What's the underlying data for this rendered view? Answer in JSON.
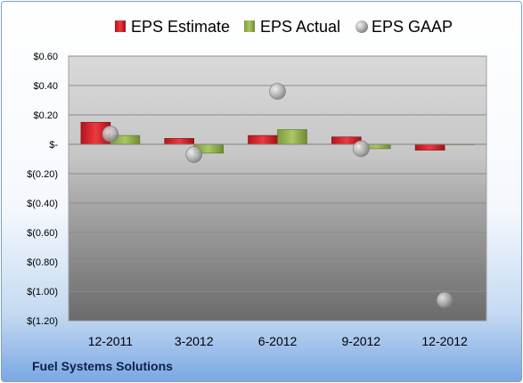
{
  "company": "Fuel Systems Solutions",
  "colors": {
    "estimate": "#e0262e",
    "actual": "#9bbb59",
    "gaap": "#a6a6a6"
  },
  "chart_data": {
    "type": "bar",
    "title": "",
    "xlabel": "",
    "ylabel": "",
    "categories": [
      "12-2011",
      "3-2012",
      "6-2012",
      "9-2012",
      "12-2012"
    ],
    "series": [
      {
        "name": "EPS Estimate",
        "kind": "bar",
        "values": [
          0.15,
          0.04,
          0.06,
          0.05,
          -0.04
        ]
      },
      {
        "name": "EPS Actual",
        "kind": "bar",
        "values": [
          0.06,
          -0.06,
          0.1,
          -0.03,
          0.0
        ]
      },
      {
        "name": "EPS GAAP",
        "kind": "marker",
        "values": [
          0.07,
          -0.07,
          0.36,
          -0.03,
          -1.06
        ]
      }
    ],
    "ylim": [
      -1.2,
      0.6
    ],
    "yticks": [
      0.6,
      0.4,
      0.2,
      0,
      -0.2,
      -0.4,
      -0.6,
      -0.8,
      -1.0,
      -1.2
    ],
    "ytick_labels": [
      "$0.60",
      "$0.40",
      "$0.20",
      "$-",
      "$(0.20)",
      "$(0.40)",
      "$(0.60)",
      "$(0.80)",
      "$(1.00)",
      "$(1.20)"
    ],
    "grid": true,
    "legend_position": "top"
  }
}
